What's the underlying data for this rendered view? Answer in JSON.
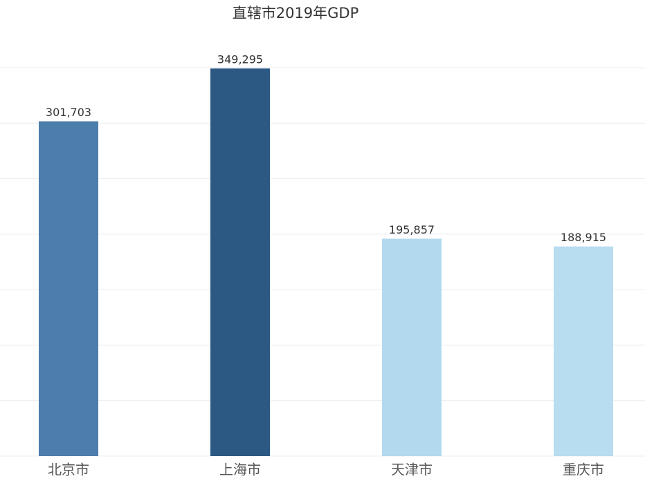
{
  "chart_data": {
    "type": "bar",
    "title": "直辖市2019年GDP",
    "categories": [
      "北京市",
      "上海市",
      "天津市",
      "重庆市"
    ],
    "values": [
      301703,
      349295,
      195857,
      188915
    ],
    "value_labels": [
      "301,703",
      "349,295",
      "195,857",
      "188,915"
    ],
    "colors": [
      "#4c7dab",
      "#2c5984",
      "#b3d9ee",
      "#b8dcf0"
    ],
    "ylim": [
      0,
      350000
    ],
    "yticks": [
      0,
      50000,
      100000,
      150000,
      200000,
      250000,
      300000,
      350000
    ],
    "grid": true
  }
}
